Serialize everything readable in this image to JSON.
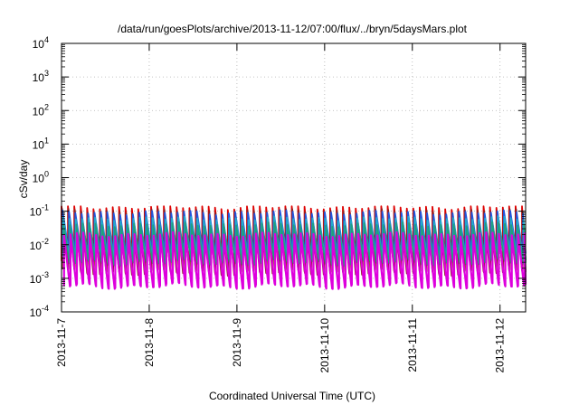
{
  "chart_data": {
    "type": "line",
    "title": "/data/run/goesPlots/archive/2013-11-12/07:00/flux/../bryn/5daysMars.plot",
    "xlabel": "Coordinated Universal Time (UTC)",
    "ylabel": "cSv/day",
    "yscale": "log",
    "ylim": [
      0.0001,
      10000
    ],
    "xlim": [
      "2013-11-07T00:00",
      "2013-11-12T07:00"
    ],
    "grid": true,
    "legend": "none",
    "y_ticks": [
      {
        "value": 0.0001,
        "base": "10",
        "exp": "-4"
      },
      {
        "value": 0.001,
        "base": "10",
        "exp": "-3"
      },
      {
        "value": 0.01,
        "base": "10",
        "exp": "-2"
      },
      {
        "value": 0.1,
        "base": "10",
        "exp": "-1"
      },
      {
        "value": 1,
        "base": "10",
        "exp": "0"
      },
      {
        "value": 10,
        "base": "10",
        "exp": "1"
      },
      {
        "value": 100,
        "base": "10",
        "exp": "2"
      },
      {
        "value": 1000,
        "base": "10",
        "exp": "3"
      },
      {
        "value": 10000,
        "base": "10",
        "exp": "4"
      }
    ],
    "x_ticks": [
      {
        "value": "2013-11-07T00:00",
        "label": "2013-11-7"
      },
      {
        "value": "2013-11-08T00:00",
        "label": "2013-11-8"
      },
      {
        "value": "2013-11-09T00:00",
        "label": "2013-11-9"
      },
      {
        "value": "2013-11-10T00:00",
        "label": "2013-11-10"
      },
      {
        "value": "2013-11-11T00:00",
        "label": "2013-11-11"
      },
      {
        "value": "2013-11-12T00:00",
        "label": "2013-11-12"
      }
    ],
    "series": [
      {
        "color": "#dd0000",
        "values_peak": [
          0.12,
          0.13,
          0.11,
          0.12,
          0.1,
          0.11
        ],
        "x_peaks": [
          "2013-11-07T06:00",
          "2013-11-08T00:00",
          "2013-11-09T00:00",
          "2013-11-10T00:00",
          "2013-11-11T00:00",
          "2013-11-12T00:00"
        ],
        "cycle_hours": 1.75,
        "range": [
          0.003,
          0.13
        ]
      },
      {
        "color": "#8b2020",
        "cycle_hours": 1.75,
        "range": [
          0.0015,
          0.1
        ]
      },
      {
        "color": "#2255dd",
        "cycle_hours": 1.75,
        "range": [
          0.006,
          0.09
        ]
      },
      {
        "color": "#22aacc",
        "cycle_hours": 1.75,
        "range": [
          0.004,
          0.06
        ]
      },
      {
        "color": "#20a080",
        "cycle_hours": 1.75,
        "range": [
          0.003,
          0.04
        ]
      },
      {
        "color": "#dd00dd",
        "cycle_hours": 1.75,
        "range": [
          0.0006,
          0.02
        ]
      }
    ]
  }
}
